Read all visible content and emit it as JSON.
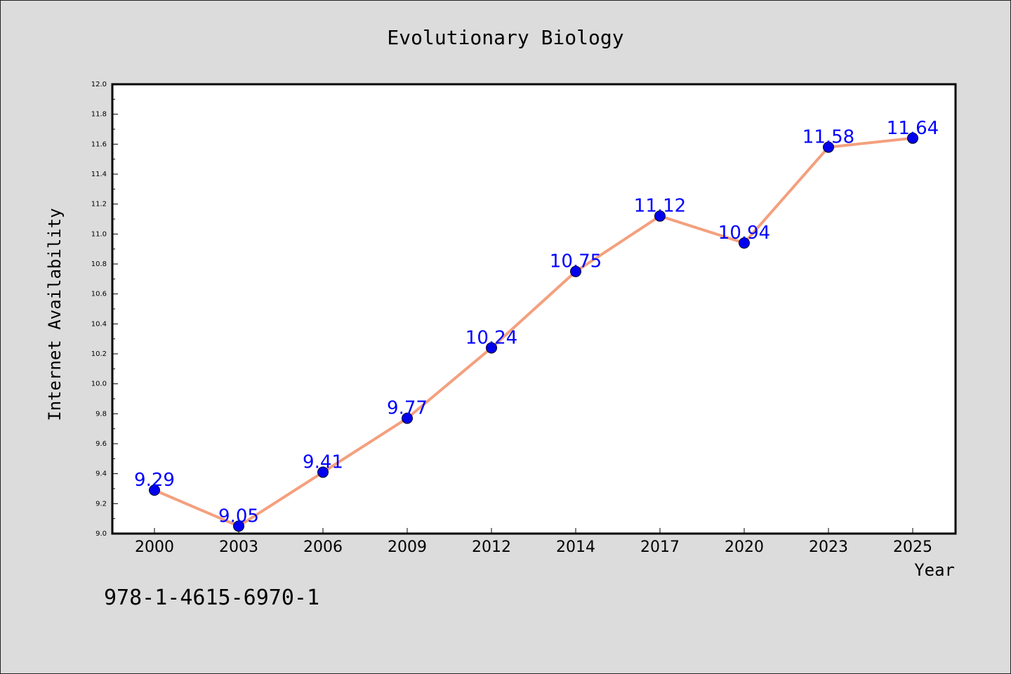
{
  "chart_data": {
    "type": "line",
    "title": "Evolutionary Biology",
    "xlabel": "Year",
    "ylabel": "Internet Availability",
    "categories": [
      "2000",
      "2003",
      "2006",
      "2009",
      "2012",
      "2014",
      "2017",
      "2020",
      "2023",
      "2025"
    ],
    "values": [
      9.29,
      9.05,
      9.41,
      9.77,
      10.24,
      10.75,
      11.12,
      10.94,
      11.58,
      11.64
    ],
    "data_labels": [
      "9.29",
      "9.05",
      "9.41",
      "9.77",
      "10.24",
      "10.75",
      "11.12",
      "10.94",
      "11.58",
      "11.64"
    ],
    "ylim": [
      9.0,
      12.0
    ],
    "yticks": [
      "9.0",
      "9.2",
      "9.4",
      "9.6",
      "9.8",
      "10.0",
      "10.2",
      "10.4",
      "10.6",
      "10.8",
      "11.0",
      "11.2",
      "11.4",
      "11.6",
      "11.8",
      "12.0"
    ],
    "grid": false,
    "line_color": "#f4a07e",
    "marker_color": "#0000ee",
    "label_color": "#0000ff",
    "background": "#dcdcdc",
    "plot_background": "#ffffff"
  },
  "footer": {
    "isbn": "978-1-4615-6970-1"
  }
}
